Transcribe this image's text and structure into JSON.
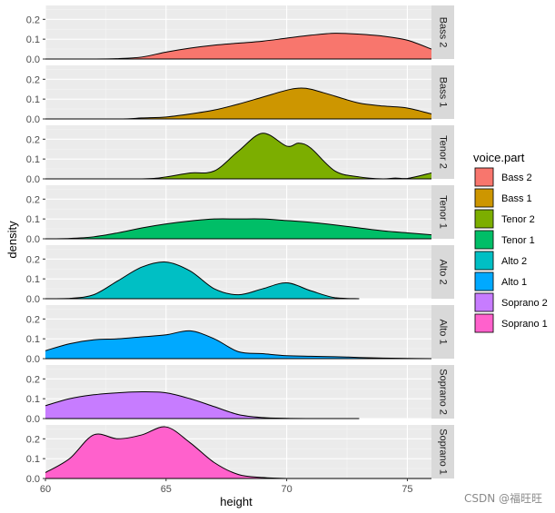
{
  "chart_data": {
    "type": "area",
    "subtype": "faceted density plot",
    "xlabel": "height",
    "ylabel": "density",
    "xlim": [
      60,
      76
    ],
    "ylim": [
      0,
      0.27
    ],
    "x_ticks": [
      60,
      65,
      70,
      75
    ],
    "y_ticks": [
      0.0,
      0.1,
      0.2
    ],
    "grid": true,
    "legend": {
      "title": "voice.part",
      "position": "right",
      "entries": [
        "Bass 2",
        "Bass 1",
        "Tenor 2",
        "Tenor 1",
        "Alto 2",
        "Alto 1",
        "Soprano 2",
        "Soprano 1"
      ]
    },
    "series": [
      {
        "name": "Bass 2",
        "color": "#F8766D",
        "x": [
          60,
          62,
          63,
          64,
          65,
          66,
          67,
          68,
          69,
          70,
          71,
          72,
          73,
          74,
          75,
          76
        ],
        "y": [
          0.0,
          0.0,
          0.002,
          0.01,
          0.035,
          0.055,
          0.07,
          0.08,
          0.09,
          0.105,
          0.12,
          0.13,
          0.125,
          0.115,
          0.095,
          0.05
        ]
      },
      {
        "name": "Bass 1",
        "color": "#CD9600",
        "x": [
          60,
          63,
          64,
          65,
          66,
          67,
          68,
          69,
          70,
          70.5,
          71,
          72,
          73,
          74,
          75,
          76
        ],
        "y": [
          0.0,
          0.0,
          0.005,
          0.01,
          0.025,
          0.045,
          0.075,
          0.11,
          0.145,
          0.155,
          0.15,
          0.115,
          0.08,
          0.065,
          0.055,
          0.025
        ]
      },
      {
        "name": "Tenor 2",
        "color": "#7CAE00",
        "x": [
          60,
          64,
          65,
          66,
          67,
          68,
          69,
          70,
          70.5,
          71,
          72,
          73,
          74,
          74.5,
          75,
          76
        ],
        "y": [
          0.0,
          0.0,
          0.01,
          0.03,
          0.04,
          0.14,
          0.23,
          0.165,
          0.18,
          0.155,
          0.04,
          0.01,
          0.0,
          0.004,
          0.002,
          0.03
        ]
      },
      {
        "name": "Tenor 1",
        "color": "#00BE67",
        "x": [
          60,
          61,
          62,
          63,
          64,
          65,
          66,
          67,
          68,
          69,
          70,
          71,
          72,
          73,
          74,
          75,
          76
        ],
        "y": [
          0.0,
          0.002,
          0.01,
          0.03,
          0.055,
          0.075,
          0.09,
          0.1,
          0.1,
          0.1,
          0.092,
          0.083,
          0.07,
          0.055,
          0.04,
          0.03,
          0.02
        ]
      },
      {
        "name": "Alto 2",
        "color": "#00BFC4",
        "x": [
          60,
          61,
          62,
          63,
          64,
          65,
          66,
          67,
          68,
          69,
          70,
          71,
          72,
          73
        ],
        "y": [
          0.0,
          0.002,
          0.02,
          0.09,
          0.16,
          0.185,
          0.14,
          0.05,
          0.02,
          0.05,
          0.08,
          0.04,
          0.005,
          0.0
        ]
      },
      {
        "name": "Alto 1",
        "color": "#00A9FF",
        "x": [
          60,
          61,
          62,
          63,
          64,
          65,
          66,
          67,
          68,
          69,
          70,
          71,
          72,
          73,
          74,
          75,
          76
        ],
        "y": [
          0.04,
          0.075,
          0.095,
          0.1,
          0.11,
          0.12,
          0.14,
          0.1,
          0.035,
          0.025,
          0.015,
          0.012,
          0.01,
          0.006,
          0.003,
          0.001,
          0.0
        ]
      },
      {
        "name": "Soprano 2",
        "color": "#C77CFF",
        "x": [
          60,
          61,
          62,
          63,
          64,
          65,
          66,
          67,
          68,
          69,
          70,
          71,
          72,
          73
        ],
        "y": [
          0.065,
          0.1,
          0.12,
          0.13,
          0.135,
          0.13,
          0.1,
          0.06,
          0.02,
          0.005,
          0.001,
          0.0,
          0.0,
          0.0
        ]
      },
      {
        "name": "Soprano 1",
        "color": "#FF61CC",
        "x": [
          60,
          61,
          62,
          63,
          64,
          65,
          66,
          67,
          68,
          69,
          70,
          71,
          76
        ],
        "y": [
          0.03,
          0.1,
          0.22,
          0.2,
          0.22,
          0.26,
          0.18,
          0.08,
          0.02,
          0.005,
          0.0,
          0.0,
          0.0
        ]
      }
    ]
  },
  "watermark": "CSDN @福旺旺"
}
